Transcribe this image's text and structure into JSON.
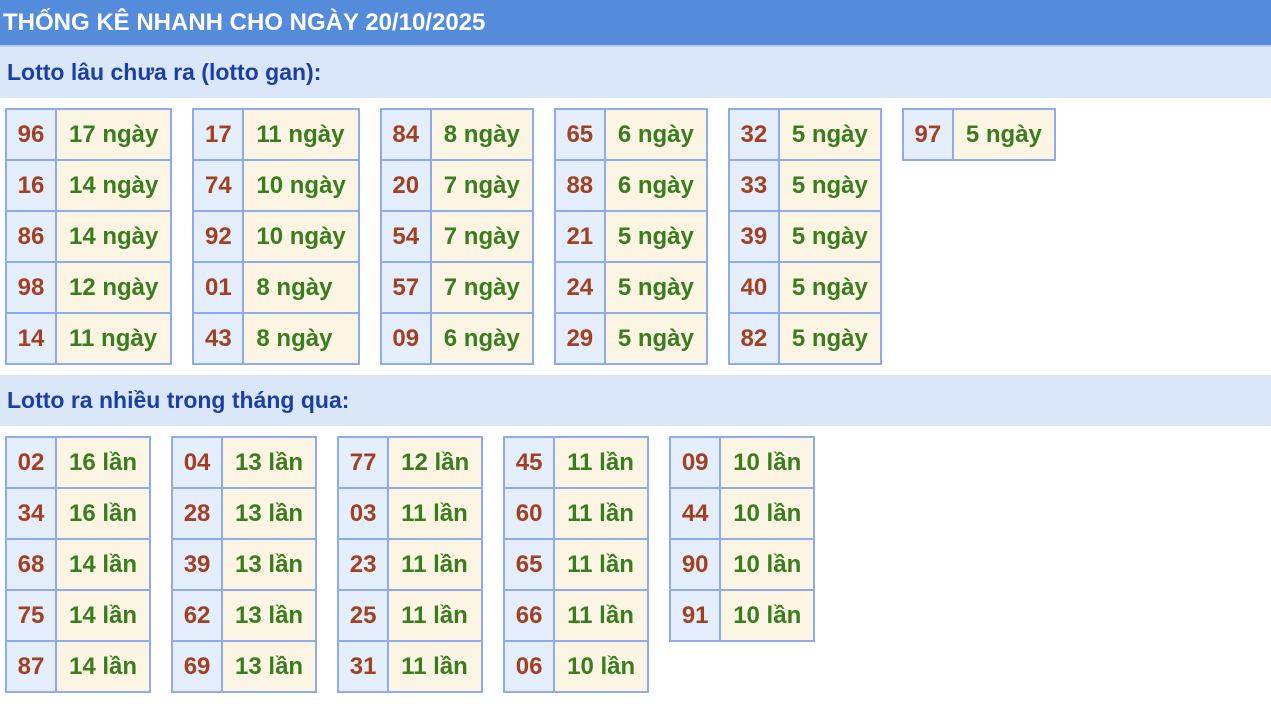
{
  "header": {
    "title": "THỐNG KÊ NHANH CHO NGÀY 20/10/2025"
  },
  "colors": {
    "header_bg": "#548bdb",
    "section_bg": "#d9e7f9",
    "number": "#a3401f",
    "value": "#3a7d1e"
  },
  "gan": {
    "title": "Lotto lâu chưa ra (lotto gan):",
    "groups": [
      [
        [
          "96",
          "17 ngày"
        ],
        [
          "16",
          "14 ngày"
        ],
        [
          "86",
          "14 ngày"
        ],
        [
          "98",
          "12 ngày"
        ],
        [
          "14",
          "11 ngày"
        ]
      ],
      [
        [
          "17",
          "11 ngày"
        ],
        [
          "74",
          "10 ngày"
        ],
        [
          "92",
          "10 ngày"
        ],
        [
          "01",
          "8 ngày"
        ],
        [
          "43",
          "8 ngày"
        ]
      ],
      [
        [
          "84",
          "8 ngày"
        ],
        [
          "20",
          "7 ngày"
        ],
        [
          "54",
          "7 ngày"
        ],
        [
          "57",
          "7 ngày"
        ],
        [
          "09",
          "6 ngày"
        ]
      ],
      [
        [
          "65",
          "6 ngày"
        ],
        [
          "88",
          "6 ngày"
        ],
        [
          "21",
          "5 ngày"
        ],
        [
          "24",
          "5 ngày"
        ],
        [
          "29",
          "5 ngày"
        ]
      ],
      [
        [
          "32",
          "5 ngày"
        ],
        [
          "33",
          "5 ngày"
        ],
        [
          "39",
          "5 ngày"
        ],
        [
          "40",
          "5 ngày"
        ],
        [
          "82",
          "5 ngày"
        ]
      ],
      [
        [
          "97",
          "5 ngày"
        ]
      ]
    ]
  },
  "nhieu": {
    "title": "Lotto ra nhiều trong tháng qua:",
    "groups": [
      [
        [
          "02",
          "16 lần"
        ],
        [
          "34",
          "16 lần"
        ],
        [
          "68",
          "14 lần"
        ],
        [
          "75",
          "14 lần"
        ],
        [
          "87",
          "14 lần"
        ]
      ],
      [
        [
          "04",
          "13 lần"
        ],
        [
          "28",
          "13 lần"
        ],
        [
          "39",
          "13 lần"
        ],
        [
          "62",
          "13 lần"
        ],
        [
          "69",
          "13 lần"
        ]
      ],
      [
        [
          "77",
          "12 lần"
        ],
        [
          "03",
          "11 lần"
        ],
        [
          "23",
          "11 lần"
        ],
        [
          "25",
          "11 lần"
        ],
        [
          "31",
          "11 lần"
        ]
      ],
      [
        [
          "45",
          "11 lần"
        ],
        [
          "60",
          "11 lần"
        ],
        [
          "65",
          "11 lần"
        ],
        [
          "66",
          "11 lần"
        ],
        [
          "06",
          "10 lần"
        ]
      ],
      [
        [
          "09",
          "10 lần"
        ],
        [
          "44",
          "10 lần"
        ],
        [
          "90",
          "10 lần"
        ],
        [
          "91",
          "10 lần"
        ]
      ]
    ]
  }
}
